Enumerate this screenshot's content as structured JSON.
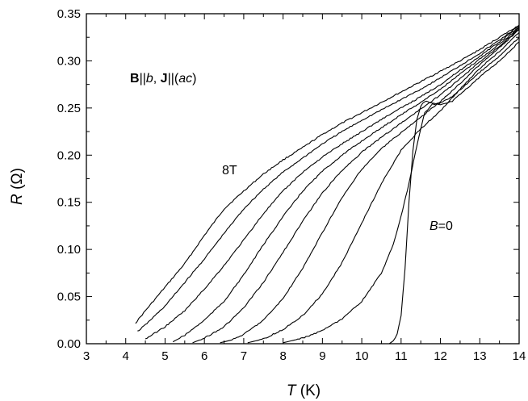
{
  "chart_data": {
    "type": "line",
    "title": "",
    "xlabel": {
      "symbol": "T",
      "unit": " (K)"
    },
    "ylabel": {
      "symbol": "R",
      "unit": " (Ω)"
    },
    "xlim": [
      3,
      14
    ],
    "ylim": [
      0,
      0.35
    ],
    "x_ticks": [
      "3",
      "4",
      "5",
      "6",
      "7",
      "8",
      "9",
      "10",
      "11",
      "12",
      "13",
      "14"
    ],
    "y_ticks": [
      "0.00",
      "0.05",
      "0.10",
      "0.15",
      "0.20",
      "0.25",
      "0.30",
      "0.35"
    ],
    "grid": false,
    "legend": "none",
    "annotations": {
      "field_geometry": {
        "B": "B",
        "sep1": "||",
        "b": "b",
        "sep2": ", ",
        "J": "J",
        "sep3": "||(",
        "ac": "ac",
        "close": ")"
      },
      "label_8T": "8T",
      "label_B0": {
        "B": "B",
        "rest": "=0"
      }
    },
    "series": [
      {
        "label": "8T",
        "points": [
          [
            4.25,
            0.022
          ],
          [
            4.5,
            0.035
          ],
          [
            5,
            0.06
          ],
          [
            5.5,
            0.085
          ],
          [
            6,
            0.115
          ],
          [
            6.5,
            0.143
          ],
          [
            7,
            0.162
          ],
          [
            7.5,
            0.18
          ],
          [
            8,
            0.195
          ],
          [
            8.5,
            0.208
          ],
          [
            9,
            0.222
          ],
          [
            9.5,
            0.234
          ],
          [
            10,
            0.245
          ],
          [
            10.5,
            0.256
          ],
          [
            11,
            0.267
          ],
          [
            11.5,
            0.278
          ],
          [
            12,
            0.289
          ],
          [
            12.5,
            0.3
          ],
          [
            13,
            0.312
          ],
          [
            13.5,
            0.325
          ],
          [
            14,
            0.338
          ]
        ]
      },
      {
        "points": [
          [
            4.3,
            0.013
          ],
          [
            4.5,
            0.02
          ],
          [
            5,
            0.04
          ],
          [
            5.5,
            0.065
          ],
          [
            6,
            0.09
          ],
          [
            6.5,
            0.117
          ],
          [
            7,
            0.143
          ],
          [
            7.5,
            0.164
          ],
          [
            8,
            0.182
          ],
          [
            8.5,
            0.197
          ],
          [
            9,
            0.212
          ],
          [
            9.5,
            0.225
          ],
          [
            10,
            0.237
          ],
          [
            10.5,
            0.248
          ],
          [
            11,
            0.259
          ],
          [
            11.5,
            0.27
          ],
          [
            12,
            0.282
          ],
          [
            12.5,
            0.295
          ],
          [
            13,
            0.308
          ],
          [
            13.5,
            0.322
          ],
          [
            14,
            0.337
          ]
        ]
      },
      {
        "points": [
          [
            4.5,
            0.005
          ],
          [
            5,
            0.018
          ],
          [
            5.5,
            0.035
          ],
          [
            6,
            0.058
          ],
          [
            6.5,
            0.083
          ],
          [
            7,
            0.11
          ],
          [
            7.5,
            0.138
          ],
          [
            8,
            0.162
          ],
          [
            8.5,
            0.182
          ],
          [
            9,
            0.198
          ],
          [
            9.5,
            0.212
          ],
          [
            10,
            0.225
          ],
          [
            10.5,
            0.238
          ],
          [
            11,
            0.25
          ],
          [
            11.5,
            0.262
          ],
          [
            12,
            0.275
          ],
          [
            12.5,
            0.29
          ],
          [
            13,
            0.305
          ],
          [
            13.5,
            0.32
          ],
          [
            14,
            0.336
          ]
        ]
      },
      {
        "points": [
          [
            5.2,
            0.002
          ],
          [
            5.5,
            0.009
          ],
          [
            6,
            0.025
          ],
          [
            6.5,
            0.045
          ],
          [
            7,
            0.073
          ],
          [
            7.5,
            0.105
          ],
          [
            8,
            0.135
          ],
          [
            8.5,
            0.162
          ],
          [
            9,
            0.183
          ],
          [
            9.5,
            0.2
          ],
          [
            10,
            0.215
          ],
          [
            10.5,
            0.229
          ],
          [
            11,
            0.243
          ],
          [
            11.5,
            0.256
          ],
          [
            12,
            0.27
          ],
          [
            12.5,
            0.286
          ],
          [
            13,
            0.302
          ],
          [
            13.5,
            0.318
          ],
          [
            14,
            0.335
          ]
        ]
      },
      {
        "points": [
          [
            5.7,
            0.001
          ],
          [
            6,
            0.006
          ],
          [
            6.5,
            0.018
          ],
          [
            7,
            0.038
          ],
          [
            7.5,
            0.065
          ],
          [
            8,
            0.097
          ],
          [
            8.5,
            0.13
          ],
          [
            9,
            0.16
          ],
          [
            9.5,
            0.184
          ],
          [
            10,
            0.203
          ],
          [
            10.5,
            0.219
          ],
          [
            11,
            0.234
          ],
          [
            11.5,
            0.249
          ],
          [
            12,
            0.264
          ],
          [
            12.5,
            0.281
          ],
          [
            13,
            0.299
          ],
          [
            13.5,
            0.316
          ],
          [
            14,
            0.334
          ]
        ]
      },
      {
        "points": [
          [
            6.4,
            0.001
          ],
          [
            6.7,
            0.004
          ],
          [
            7,
            0.01
          ],
          [
            7.5,
            0.025
          ],
          [
            8,
            0.048
          ],
          [
            8.5,
            0.08
          ],
          [
            9,
            0.118
          ],
          [
            9.5,
            0.155
          ],
          [
            10,
            0.185
          ],
          [
            10.5,
            0.207
          ],
          [
            11,
            0.224
          ],
          [
            11.5,
            0.24
          ],
          [
            12,
            0.257
          ],
          [
            12.5,
            0.276
          ],
          [
            13,
            0.296
          ],
          [
            13.5,
            0.314
          ],
          [
            14,
            0.333
          ]
        ]
      },
      {
        "points": [
          [
            7.1,
            0.001
          ],
          [
            7.5,
            0.005
          ],
          [
            8,
            0.015
          ],
          [
            8.5,
            0.03
          ],
          [
            9,
            0.053
          ],
          [
            9.5,
            0.086
          ],
          [
            10,
            0.128
          ],
          [
            10.5,
            0.17
          ],
          [
            11,
            0.205
          ],
          [
            11.5,
            0.228
          ],
          [
            12,
            0.247
          ],
          [
            12.5,
            0.27
          ],
          [
            13,
            0.292
          ],
          [
            13.5,
            0.31
          ],
          [
            14,
            0.33
          ]
        ]
      },
      {
        "points": [
          [
            8,
            0.001
          ],
          [
            8.5,
            0.006
          ],
          [
            9,
            0.014
          ],
          [
            9.5,
            0.026
          ],
          [
            10,
            0.045
          ],
          [
            10.5,
            0.075
          ],
          [
            10.8,
            0.105
          ],
          [
            11,
            0.135
          ],
          [
            11.2,
            0.17
          ],
          [
            11.4,
            0.21
          ],
          [
            11.6,
            0.245
          ],
          [
            11.8,
            0.254
          ],
          [
            12,
            0.255
          ],
          [
            12.3,
            0.262
          ],
          [
            12.6,
            0.273
          ],
          [
            13,
            0.288
          ],
          [
            13.5,
            0.305
          ],
          [
            14,
            0.325
          ]
        ]
      },
      {
        "label": "B=0",
        "points": [
          [
            10.7,
            0.0
          ],
          [
            10.8,
            0.003
          ],
          [
            10.9,
            0.01
          ],
          [
            11,
            0.03
          ],
          [
            11.1,
            0.08
          ],
          [
            11.2,
            0.15
          ],
          [
            11.3,
            0.205
          ],
          [
            11.4,
            0.238
          ],
          [
            11.5,
            0.252
          ],
          [
            11.6,
            0.257
          ],
          [
            11.8,
            0.255
          ],
          [
            12,
            0.253
          ],
          [
            12.3,
            0.257
          ],
          [
            12.6,
            0.268
          ],
          [
            13,
            0.283
          ],
          [
            13.5,
            0.3
          ],
          [
            14,
            0.32
          ]
        ]
      }
    ]
  }
}
